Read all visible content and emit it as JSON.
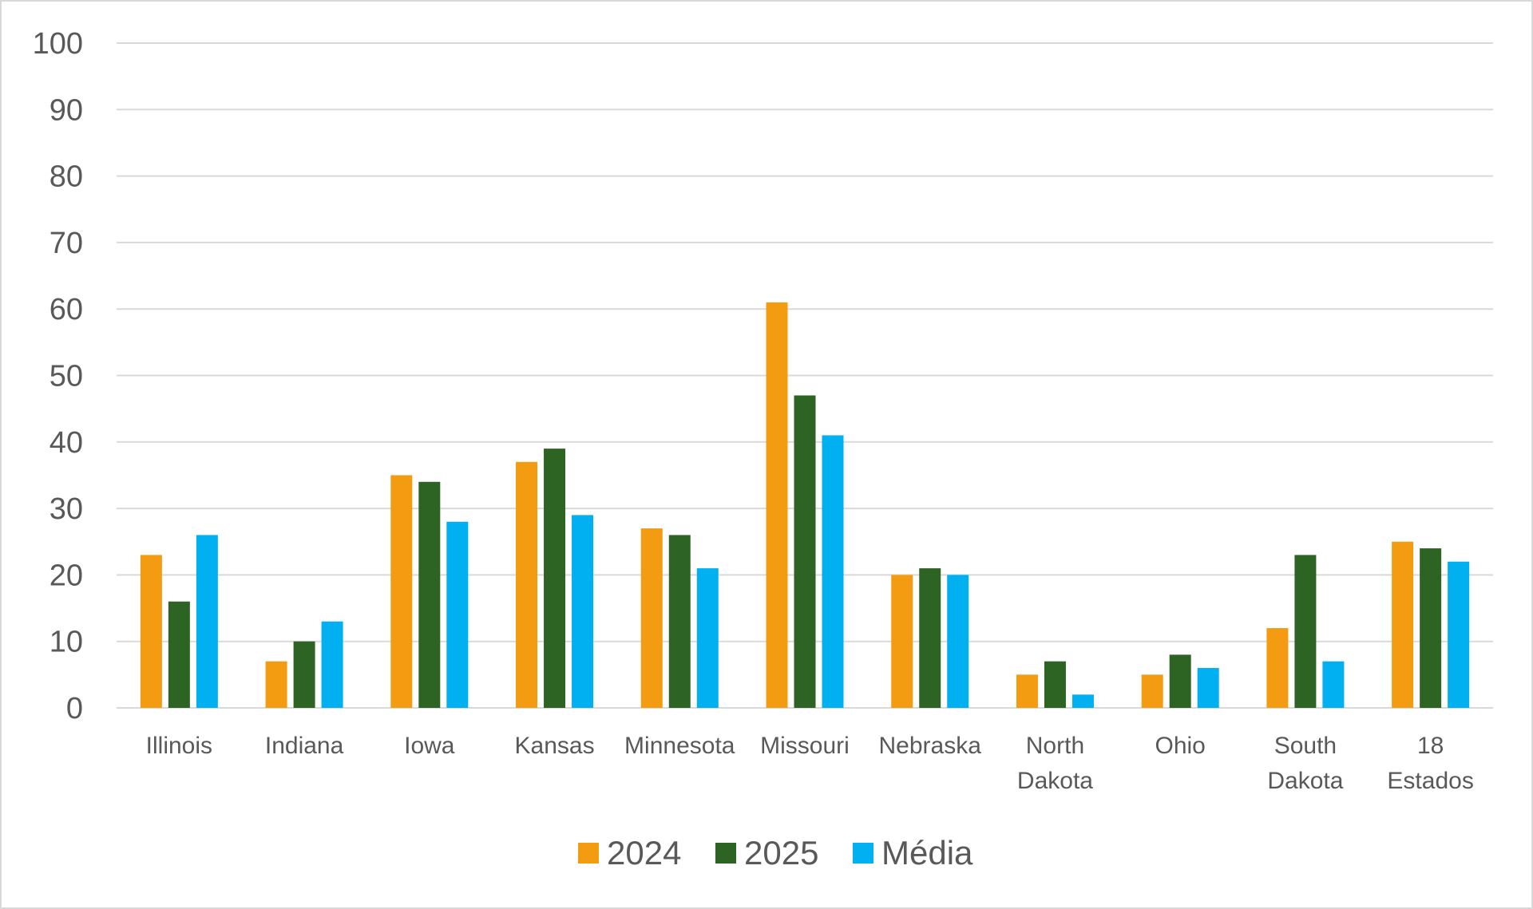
{
  "chart_data": {
    "type": "bar",
    "title": "",
    "xlabel": "",
    "ylabel": "",
    "ylim": [
      0,
      100
    ],
    "yticks": [
      0,
      10,
      20,
      30,
      40,
      50,
      60,
      70,
      80,
      90,
      100
    ],
    "grid": true,
    "legend_position": "bottom",
    "categories": [
      [
        "Illinois"
      ],
      [
        "Indiana"
      ],
      [
        "Iowa"
      ],
      [
        "Kansas"
      ],
      [
        "Minnesota"
      ],
      [
        "Missouri"
      ],
      [
        "Nebraska"
      ],
      [
        "North",
        "Dakota"
      ],
      [
        "Ohio"
      ],
      [
        "South",
        "Dakota"
      ],
      [
        "18",
        "Estados"
      ]
    ],
    "series": [
      {
        "name": "2024",
        "color": "#f39c12",
        "values": [
          23,
          7,
          35,
          37,
          27,
          61,
          20,
          5,
          5,
          12,
          25
        ]
      },
      {
        "name": "2025",
        "color": "#2e6423",
        "values": [
          16,
          10,
          34,
          39,
          26,
          47,
          21,
          7,
          8,
          23,
          24
        ]
      },
      {
        "name": "Média",
        "color": "#00b0f0",
        "values": [
          26,
          13,
          28,
          29,
          21,
          41,
          20,
          2,
          6,
          7,
          22
        ]
      }
    ]
  }
}
